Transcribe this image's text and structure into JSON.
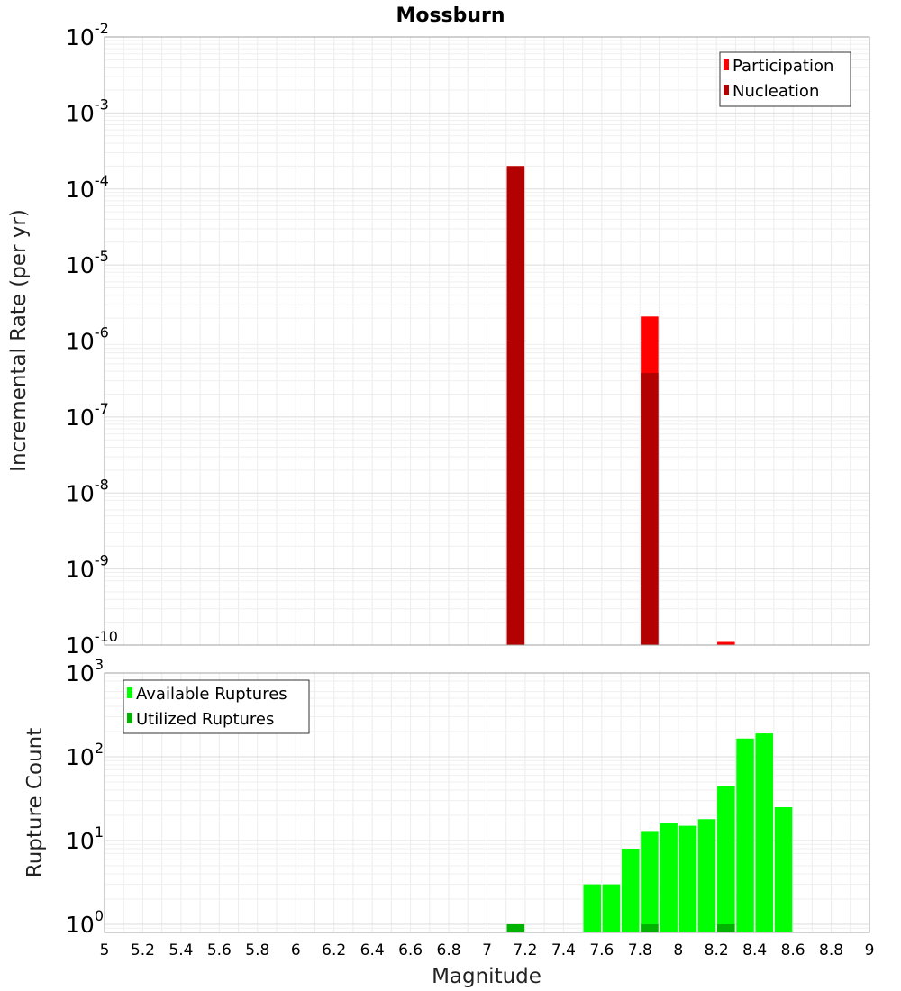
{
  "chart_data": {
    "title": "Mossburn",
    "type": "bar",
    "xlabel": "Magnitude",
    "xlim": [
      5,
      9
    ],
    "xticks": [
      "5",
      "5.2",
      "5.4",
      "5.6",
      "5.8",
      "6",
      "6.2",
      "6.4",
      "6.6",
      "6.8",
      "7",
      "7.2",
      "7.4",
      "7.6",
      "7.8",
      "8",
      "8.2",
      "8.4",
      "8.6",
      "8.8",
      "9"
    ],
    "bin_width": 0.1,
    "panels": [
      {
        "ylabel": "Incremental Rate (per yr)",
        "yscale": "log",
        "ylim": [
          1e-10,
          0.01
        ],
        "yticks": [
          {
            "base": "10",
            "exp": "-10"
          },
          {
            "base": "10",
            "exp": "-9"
          },
          {
            "base": "10",
            "exp": "-8"
          },
          {
            "base": "10",
            "exp": "-7"
          },
          {
            "base": "10",
            "exp": "-6"
          },
          {
            "base": "10",
            "exp": "-5"
          },
          {
            "base": "10",
            "exp": "-4"
          },
          {
            "base": "10",
            "exp": "-3"
          },
          {
            "base": "10",
            "exp": "-2"
          }
        ],
        "legend_position": "top-right",
        "series": [
          {
            "name": "Participation",
            "color": "#ff0000",
            "x": [
              7.15,
              7.85,
              8.25
            ],
            "values": [
              0.0002,
              2.1e-06,
              1.1e-10
            ]
          },
          {
            "name": "Nucleation",
            "color": "#b30000",
            "x": [
              7.15,
              7.85
            ],
            "values": [
              0.0002,
              3.8e-07
            ]
          }
        ]
      },
      {
        "ylabel": "Rupture Count",
        "yscale": "log",
        "ylim": [
          0.8,
          1000
        ],
        "yticks": [
          {
            "base": "10",
            "exp": "0"
          },
          {
            "base": "10",
            "exp": "1"
          },
          {
            "base": "10",
            "exp": "2"
          },
          {
            "base": "10",
            "exp": "3"
          }
        ],
        "legend_position": "top-left",
        "series": [
          {
            "name": "Available Ruptures",
            "color": "#00ff00",
            "x": [
              7.15,
              7.55,
              7.65,
              7.75,
              7.85,
              7.95,
              8.05,
              8.15,
              8.25,
              8.35,
              8.45,
              8.55
            ],
            "values": [
              1,
              3,
              3,
              8,
              13,
              16,
              15,
              18,
              45,
              165,
              190,
              25
            ]
          },
          {
            "name": "Utilized Ruptures",
            "color": "#00b300",
            "x": [
              7.15,
              7.85,
              8.25
            ],
            "values": [
              1,
              1,
              1
            ]
          }
        ]
      }
    ]
  }
}
